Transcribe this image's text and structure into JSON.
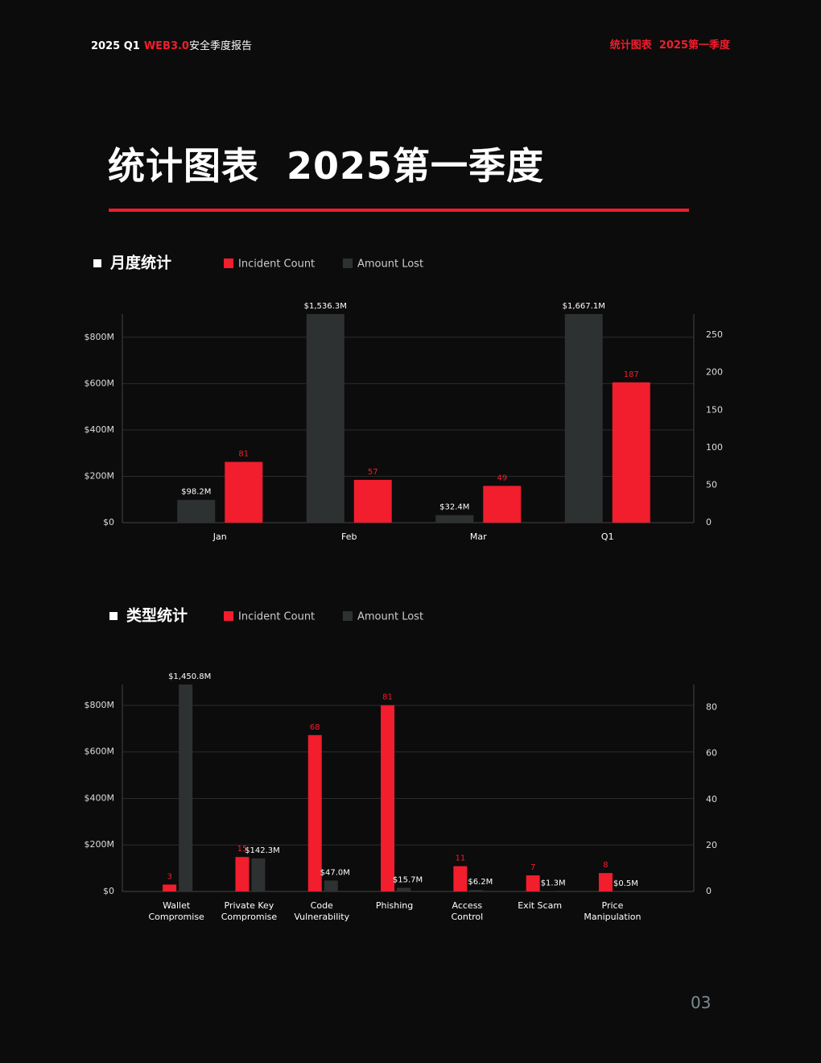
{
  "header": {
    "prefix": "2025 Q1",
    "highlight": "WEB3.0",
    "suffix": "安全季度报告",
    "right": "统计图表  2025第一季度"
  },
  "title": "统计图表  2025第一季度",
  "page_number": "03",
  "chart_data": [
    {
      "type": "bar",
      "title": "月度统计",
      "categories": [
        "Jan",
        "Feb",
        "Mar",
        "Q1"
      ],
      "series": [
        {
          "name": "Incident Count",
          "color": "#f21d2d",
          "axis": "y2",
          "values": [
            81,
            57,
            49,
            187
          ]
        },
        {
          "name": "Amount Lost",
          "color": "#2e3131",
          "axis": "y",
          "values": [
            98.2,
            1536.3,
            32.4,
            1667.1
          ],
          "value_labels": [
            "$98.2M",
            "$1,536.3M",
            "$32.4M",
            "$1,667.1M"
          ]
        }
      ],
      "ylim": [
        0,
        900
      ],
      "yticks": [
        {
          "value": 0,
          "label": "$0"
        },
        {
          "value": 200,
          "label": "$200M"
        },
        {
          "value": 400,
          "label": "$400M"
        },
        {
          "value": 600,
          "label": "$600M"
        },
        {
          "value": 800,
          "label": "$800M"
        }
      ],
      "y2lim": [
        0,
        278
      ],
      "y2ticks": [
        0,
        50,
        100,
        150,
        200,
        250
      ],
      "grid": true
    },
    {
      "type": "bar",
      "title": "类型统计",
      "categories": [
        "Wallet\nCompromise",
        "Private Key\nCompromise",
        "Code\nVulnerability",
        "Phishing",
        "Access\nControl",
        "Exit Scam",
        "Price\nManipulation"
      ],
      "series": [
        {
          "name": "Incident Count",
          "color": "#f21d2d",
          "axis": "y2",
          "values": [
            3,
            15,
            68,
            81,
            11,
            7,
            8
          ]
        },
        {
          "name": "Amount Lost",
          "color": "#2e3131",
          "axis": "y",
          "values": [
            1450.8,
            142.3,
            47.0,
            15.7,
            6.2,
            1.3,
            0.5
          ],
          "value_labels": [
            "$1,450.8M",
            "$142.3M",
            "$47.0M",
            "$15.7M",
            "$6.2M",
            "$1.3M",
            "$0.5M"
          ]
        }
      ],
      "ylim": [
        0,
        890
      ],
      "yticks": [
        {
          "value": 0,
          "label": "$0"
        },
        {
          "value": 200,
          "label": "$200M"
        },
        {
          "value": 400,
          "label": "$400M"
        },
        {
          "value": 600,
          "label": "$600M"
        },
        {
          "value": 800,
          "label": "$800M"
        }
      ],
      "y2lim": [
        0,
        90
      ],
      "y2ticks": [
        0,
        20,
        40,
        60,
        80
      ],
      "grid": true
    }
  ]
}
